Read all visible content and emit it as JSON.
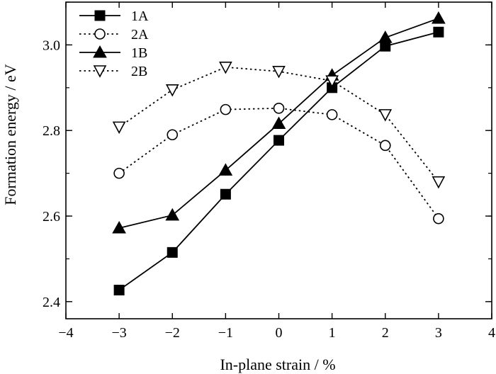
{
  "chart_data": {
    "type": "line",
    "title": "",
    "xlabel": "In-plane strain / %",
    "ylabel": "Formation energy / eV",
    "xlim": [
      -4,
      4
    ],
    "ylim": [
      2.36,
      3.1
    ],
    "xticks": [
      -4,
      -3,
      -2,
      -1,
      0,
      1,
      2,
      3,
      4
    ],
    "xtick_labels": [
      "−4",
      "−3",
      "−2",
      "−1",
      "0",
      "1",
      "2",
      "3",
      "4"
    ],
    "yticks": [
      2.4,
      2.6,
      2.8,
      3.0
    ],
    "ytick_labels": [
      "2.4",
      "2.6",
      "2.8",
      "3.0"
    ],
    "grid": false,
    "legend_position": "top-left",
    "x": [
      -3,
      -2,
      -1,
      0,
      1,
      2,
      3
    ],
    "series": [
      {
        "name": "1A",
        "values": [
          2.427,
          2.515,
          2.651,
          2.777,
          2.9,
          2.997,
          3.03
        ],
        "marker": "square-filled",
        "line": "solid",
        "color": "#000000"
      },
      {
        "name": "2A",
        "values": [
          2.7,
          2.79,
          2.849,
          2.852,
          2.837,
          2.765,
          2.594
        ],
        "marker": "circle-open",
        "line": "dotted",
        "color": "#000000"
      },
      {
        "name": "1B",
        "values": [
          2.572,
          2.602,
          2.707,
          2.816,
          2.929,
          3.017,
          3.062
        ],
        "marker": "triangle-up-filled",
        "line": "solid",
        "color": "#000000"
      },
      {
        "name": "2B",
        "values": [
          2.808,
          2.895,
          2.948,
          2.938,
          2.916,
          2.837,
          2.68
        ],
        "marker": "triangle-down-open",
        "line": "dotted",
        "color": "#000000"
      }
    ]
  }
}
